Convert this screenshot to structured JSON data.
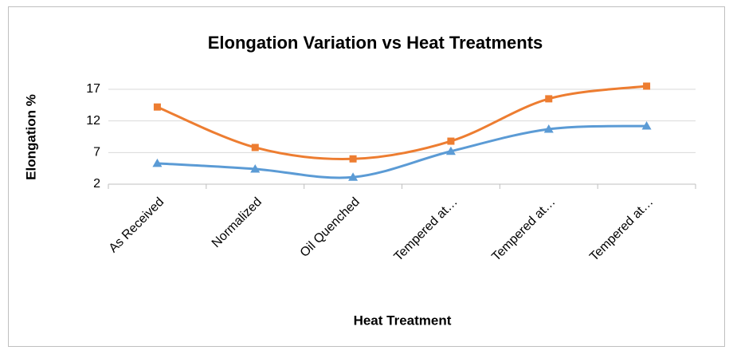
{
  "chart_data": {
    "type": "line",
    "title": "Elongation Variation vs Heat Treatments",
    "xlabel": "Heat Treatment",
    "ylabel": "Elongation %",
    "categories": [
      "As Received",
      "Normalized",
      "Oil Quenched",
      "Tempered at…",
      "Tempered at…",
      "Tempered at…"
    ],
    "series": [
      {
        "color": "#5b9bd5",
        "marker": "triangle",
        "values": [
          5.3,
          4.4,
          3.1,
          7.2,
          10.7,
          11.2
        ]
      },
      {
        "color": "#ed7d31",
        "marker": "square",
        "values": [
          14.2,
          7.8,
          6.0,
          8.8,
          15.5,
          17.5
        ]
      }
    ],
    "ylim": [
      2,
      17
    ],
    "yticks": [
      2,
      7,
      12,
      17
    ],
    "grid": true,
    "smooth": true
  }
}
